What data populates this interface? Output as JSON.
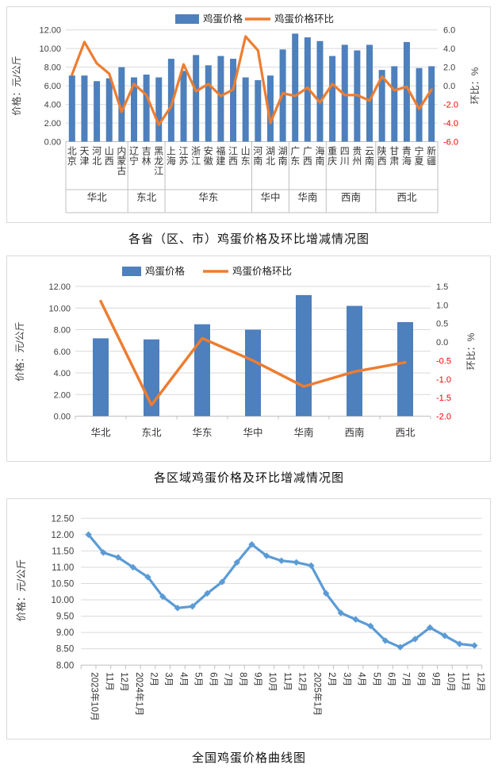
{
  "colors": {
    "bar_blue": "#4d80bc",
    "ratio_orange": "#ed7d31",
    "curve_blue": "#5b9bd5",
    "negative_tick": "#ff0000",
    "tick_text": "#404040",
    "label_text": "#333333",
    "gridline": "#d9d9d9",
    "axis_line": "#bfbfbf",
    "panel_border": "#d9d9d9"
  },
  "chart_data": [
    {
      "type": "bar+line",
      "title": "各省（区、市）鸡蛋价格及环比增减情况图",
      "legend": [
        "鸡蛋价格",
        "鸡蛋价格环比"
      ],
      "ylabel_left": "价格：元/公斤",
      "ylabel_right": "环比：%",
      "y_left": {
        "min": 0,
        "max": 12,
        "step": 2,
        "decimals": 2
      },
      "y_right": {
        "min": -6,
        "max": 6,
        "step": 2,
        "decimals": 1
      },
      "grid": true,
      "legend_position": "top",
      "categories": [
        "北京",
        "天津",
        "河北",
        "山西",
        "内蒙古",
        "辽宁",
        "吉林",
        "黑龙江",
        "上海",
        "江苏",
        "浙江",
        "安徽",
        "福建",
        "江西",
        "山东",
        "河南",
        "湖北",
        "湖南",
        "广东",
        "广西",
        "海南",
        "重庆",
        "四川",
        "贵州",
        "云南",
        "陕西",
        "甘肃",
        "青海",
        "宁夏",
        "新疆"
      ],
      "groups": [
        {
          "label": "华北",
          "span": 5
        },
        {
          "label": "东北",
          "span": 3
        },
        {
          "label": "华东",
          "span": 7
        },
        {
          "label": "华中",
          "span": 3
        },
        {
          "label": "华南",
          "span": 3
        },
        {
          "label": "西南",
          "span": 4
        },
        {
          "label": "西北",
          "span": 5
        }
      ],
      "series": [
        {
          "name": "鸡蛋价格",
          "type": "bar",
          "axis": "left",
          "values": [
            7.1,
            7.1,
            6.5,
            6.8,
            8.0,
            6.9,
            7.2,
            6.9,
            8.9,
            7.6,
            9.3,
            8.2,
            9.2,
            8.9,
            6.9,
            6.6,
            7.1,
            9.9,
            11.6,
            11.2,
            10.8,
            9.2,
            10.4,
            9.8,
            10.4,
            7.7,
            8.1,
            10.7,
            7.9,
            8.1
          ]
        },
        {
          "name": "鸡蛋价格环比",
          "type": "line",
          "axis": "right",
          "values": [
            1.2,
            4.7,
            2.4,
            1.3,
            -2.8,
            0.2,
            -1.0,
            -4.2,
            -2.2,
            2.3,
            -0.6,
            0.2,
            -1.1,
            -0.4,
            5.3,
            3.8,
            -4.0,
            -0.8,
            -1.1,
            -0.2,
            -1.8,
            0.2,
            -1.0,
            -1.0,
            -1.6,
            1.0,
            -0.5,
            -0.1,
            -2.5,
            -0.4
          ]
        }
      ]
    },
    {
      "type": "bar+line",
      "title": "各区域鸡蛋价格及环比增减情况图",
      "legend": [
        "鸡蛋价格",
        "鸡蛋价格环比"
      ],
      "ylabel_left": "价格：元/公斤",
      "ylabel_right": "环比：%",
      "y_left": {
        "min": 0,
        "max": 12,
        "step": 2,
        "decimals": 2
      },
      "y_right": {
        "min": -2,
        "max": 1.5,
        "step": 0.5,
        "decimals": 1
      },
      "grid": true,
      "legend_position": "top",
      "categories": [
        "华北",
        "东北",
        "华东",
        "华中",
        "华南",
        "西南",
        "西北"
      ],
      "series": [
        {
          "name": "鸡蛋价格",
          "type": "bar",
          "axis": "left",
          "values": [
            7.2,
            7.1,
            8.5,
            8.0,
            11.2,
            10.2,
            8.7
          ]
        },
        {
          "name": "鸡蛋价格环比",
          "type": "line",
          "axis": "right",
          "values": [
            1.1,
            -1.7,
            0.1,
            -0.5,
            -1.2,
            -0.8,
            -0.55
          ]
        }
      ]
    },
    {
      "type": "line",
      "title": "全国鸡蛋价格曲线图",
      "ylabel_left": "价格：元/公斤",
      "y_left": {
        "min": 8,
        "max": 12.5,
        "step": 0.5,
        "decimals": 2
      },
      "grid": true,
      "marker": "diamond",
      "categories": [
        "2023年10月",
        "11月",
        "12月",
        "2024年1月",
        "2月",
        "3月",
        "4月",
        "5月",
        "6月",
        "7月",
        "8月",
        "9月",
        "10月",
        "11月",
        "12月",
        "2025年1月",
        "2月",
        "3月",
        "4月",
        "5月",
        "6月",
        "7月",
        "8月",
        "9月",
        "10月",
        "11月",
        "12月"
      ],
      "series": [
        {
          "name": "全国鸡蛋价格",
          "type": "line",
          "axis": "left",
          "values": [
            12.0,
            11.45,
            11.3,
            11.0,
            10.7,
            10.1,
            9.75,
            9.8,
            10.2,
            10.55,
            11.15,
            11.7,
            11.35,
            11.2,
            11.15,
            11.05,
            10.2,
            9.6,
            9.4,
            9.2,
            8.75,
            8.55,
            8.8,
            9.15,
            8.9,
            8.65,
            8.6
          ]
        }
      ]
    }
  ]
}
